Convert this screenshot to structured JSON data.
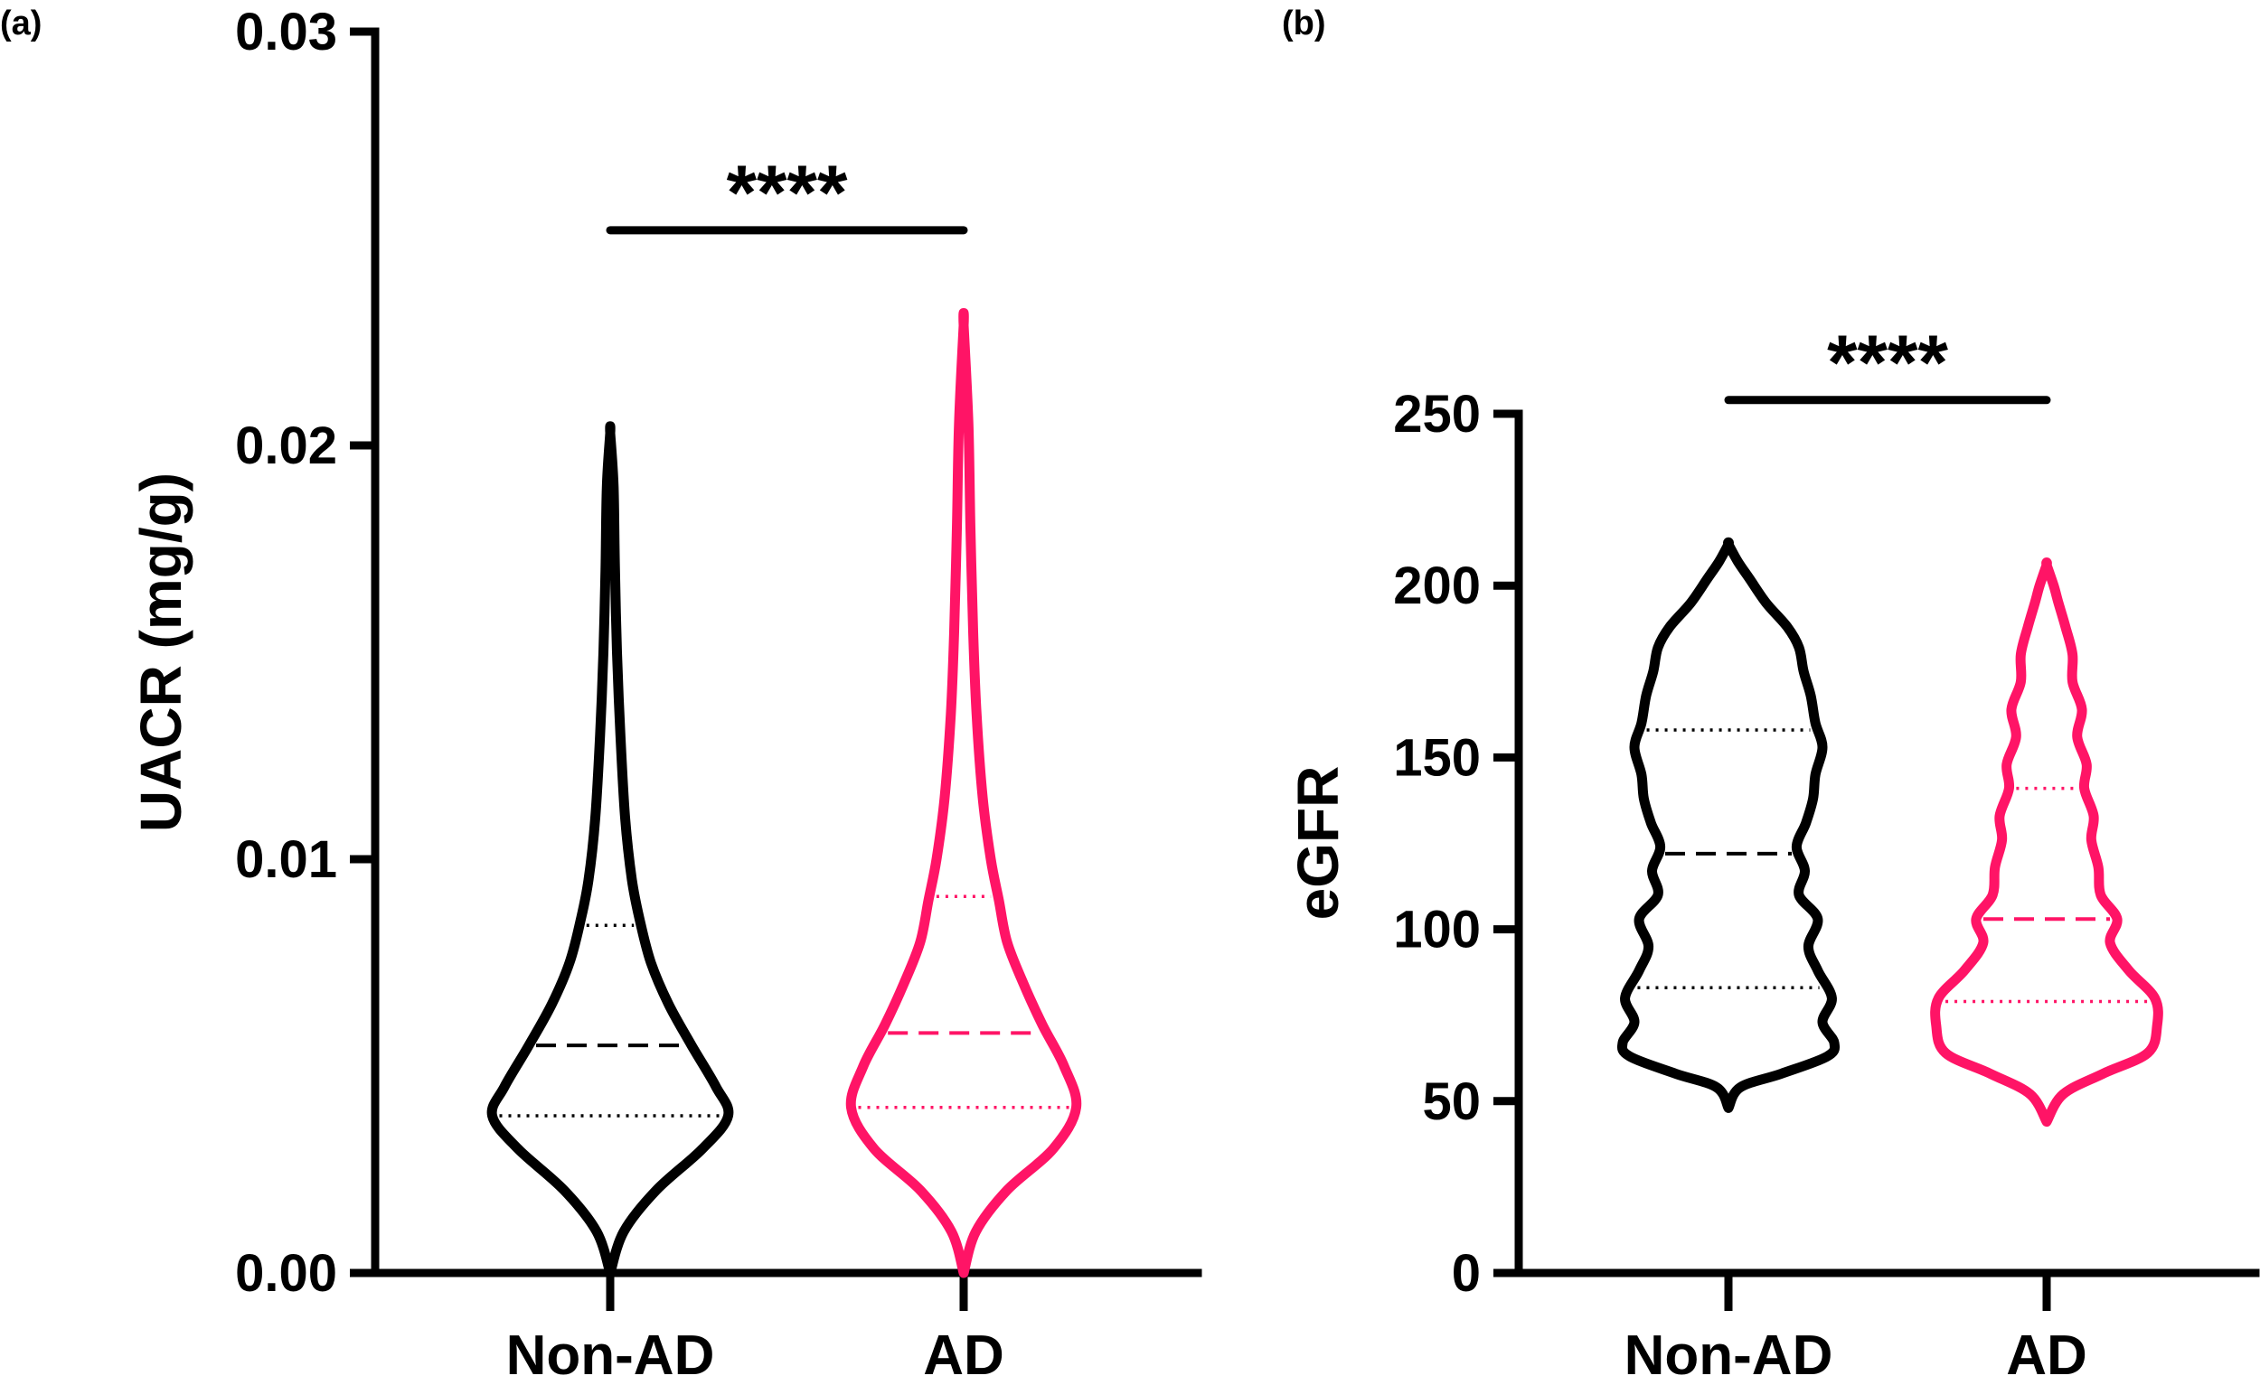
{
  "chart_data": [
    {
      "panel_label": "(a)",
      "type": "violin",
      "ylabel": "UACR (mg/g)",
      "ylim": [
        0,
        0.03
      ],
      "yticks": [
        0.0,
        0.01,
        0.02,
        0.03
      ],
      "ytick_labels": [
        "0.00",
        "0.01",
        "0.02",
        "0.03"
      ],
      "categories": [
        "Non-AD",
        "AD"
      ],
      "significance": {
        "label": "****",
        "between": [
          "Non-AD",
          "AD"
        ],
        "y": 0.0252
      },
      "series": [
        {
          "name": "Non-AD",
          "color": "#000000",
          "min": 0.0,
          "max": 0.0203,
          "q1": 0.0038,
          "median": 0.0055,
          "q3": 0.0084,
          "profile": [
            [
              0.0,
              0.0
            ],
            [
              0.001,
              0.1
            ],
            [
              0.002,
              0.34
            ],
            [
              0.003,
              0.68
            ],
            [
              0.0038,
              0.87
            ],
            [
              0.0045,
              0.78
            ],
            [
              0.0055,
              0.6
            ],
            [
              0.0065,
              0.43
            ],
            [
              0.0075,
              0.3
            ],
            [
              0.0085,
              0.22
            ],
            [
              0.0095,
              0.16
            ],
            [
              0.011,
              0.11
            ],
            [
              0.013,
              0.075
            ],
            [
              0.015,
              0.05
            ],
            [
              0.017,
              0.035
            ],
            [
              0.019,
              0.025
            ],
            [
              0.0203,
              0.0
            ]
          ]
        },
        {
          "name": "AD",
          "color": "#ff1466",
          "min": 0.0,
          "max": 0.0229,
          "q1": 0.004,
          "median": 0.0058,
          "q3": 0.0091,
          "profile": [
            [
              0.0,
              0.0
            ],
            [
              0.001,
              0.09
            ],
            [
              0.002,
              0.32
            ],
            [
              0.003,
              0.66
            ],
            [
              0.004,
              0.83
            ],
            [
              0.005,
              0.74
            ],
            [
              0.006,
              0.58
            ],
            [
              0.007,
              0.44
            ],
            [
              0.008,
              0.32
            ],
            [
              0.009,
              0.26
            ],
            [
              0.01,
              0.2
            ],
            [
              0.0115,
              0.14
            ],
            [
              0.0135,
              0.095
            ],
            [
              0.0155,
              0.07
            ],
            [
              0.018,
              0.05
            ],
            [
              0.0205,
              0.035
            ],
            [
              0.0229,
              0.0
            ]
          ]
        }
      ]
    },
    {
      "panel_label": "(b)",
      "type": "violin",
      "ylabel": "eGFR",
      "ylim": [
        0,
        250
      ],
      "yticks": [
        0,
        50,
        100,
        150,
        200,
        250
      ],
      "ytick_labels": [
        "0",
        "50",
        "100",
        "150",
        "200",
        "250"
      ],
      "categories": [
        "Non-AD",
        "AD"
      ],
      "significance": {
        "label": "****",
        "between": [
          "Non-AD",
          "AD"
        ],
        "y": 254
      },
      "series": [
        {
          "name": "Non-AD",
          "color": "#000000",
          "min": 48,
          "max": 212,
          "q1": 83,
          "median": 122,
          "q3": 158,
          "profile": [
            [
              48,
              0.0
            ],
            [
              54,
              0.1
            ],
            [
              58,
              0.45
            ],
            [
              63,
              0.84
            ],
            [
              67,
              0.9
            ],
            [
              73,
              0.8
            ],
            [
              80,
              0.88
            ],
            [
              88,
              0.76
            ],
            [
              95,
              0.68
            ],
            [
              103,
              0.76
            ],
            [
              110,
              0.6
            ],
            [
              117,
              0.65
            ],
            [
              124,
              0.58
            ],
            [
              131,
              0.66
            ],
            [
              138,
              0.72
            ],
            [
              145,
              0.74
            ],
            [
              153,
              0.8
            ],
            [
              160,
              0.74
            ],
            [
              168,
              0.7
            ],
            [
              175,
              0.64
            ],
            [
              182,
              0.6
            ],
            [
              188,
              0.5
            ],
            [
              195,
              0.32
            ],
            [
              202,
              0.18
            ],
            [
              207,
              0.08
            ],
            [
              212,
              0.0
            ]
          ]
        },
        {
          "name": "AD",
          "color": "#ff1466",
          "min": 44,
          "max": 206,
          "q1": 79,
          "median": 103,
          "q3": 141,
          "profile": [
            [
              44,
              0.0
            ],
            [
              52,
              0.14
            ],
            [
              58,
              0.48
            ],
            [
              64,
              0.86
            ],
            [
              72,
              0.94
            ],
            [
              80,
              0.92
            ],
            [
              88,
              0.7
            ],
            [
              96,
              0.54
            ],
            [
              103,
              0.6
            ],
            [
              110,
              0.46
            ],
            [
              118,
              0.44
            ],
            [
              126,
              0.38
            ],
            [
              133,
              0.4
            ],
            [
              141,
              0.32
            ],
            [
              148,
              0.34
            ],
            [
              156,
              0.26
            ],
            [
              164,
              0.3
            ],
            [
              172,
              0.22
            ],
            [
              180,
              0.22
            ],
            [
              188,
              0.16
            ],
            [
              195,
              0.1
            ],
            [
              200,
              0.06
            ],
            [
              206,
              0.0
            ]
          ]
        }
      ]
    }
  ]
}
